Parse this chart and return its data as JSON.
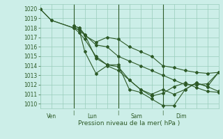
{
  "xlabel": "Pression niveau de la mer( hPa )",
  "ylim": [
    1009.5,
    1020.5
  ],
  "xlim": [
    0,
    96
  ],
  "bg_color": "#cceee8",
  "grid_color": "#99ccbb",
  "line_color": "#2d5a27",
  "markersize": 2.0,
  "linewidth": 0.8,
  "vlines_x": [
    18,
    42,
    66
  ],
  "day_labels": [
    {
      "label": "Ven",
      "x": 6
    },
    {
      "label": "Lun",
      "x": 28
    },
    {
      "label": "Sam",
      "x": 52
    },
    {
      "label": "Dim",
      "x": 76
    }
  ],
  "series": [
    {
      "x": [
        0,
        6,
        18,
        21,
        24,
        30,
        36,
        42,
        48,
        54,
        60,
        66,
        72,
        78,
        84,
        90,
        96
      ],
      "y": [
        1020.0,
        1018.8,
        1018.0,
        1017.8,
        1017.2,
        1016.5,
        1017.0,
        1016.8,
        1016.0,
        1015.5,
        1015.0,
        1014.0,
        1013.8,
        1013.5,
        1013.3,
        1013.2,
        1013.3
      ]
    },
    {
      "x": [
        18,
        21,
        24,
        30,
        36,
        42,
        48,
        54,
        60,
        66,
        72,
        78,
        84,
        90,
        96
      ],
      "y": [
        1018.2,
        1018.0,
        1017.3,
        1016.2,
        1016.0,
        1015.0,
        1014.5,
        1014.0,
        1013.5,
        1013.0,
        1012.5,
        1012.0,
        1012.0,
        1012.1,
        1013.3
      ]
    },
    {
      "x": [
        18,
        21,
        24,
        30,
        36,
        42,
        48,
        54,
        60,
        66,
        72,
        78,
        84,
        90,
        96
      ],
      "y": [
        1018.0,
        1017.8,
        1015.5,
        1013.2,
        1014.0,
        1013.5,
        1012.5,
        1011.5,
        1011.0,
        1011.5,
        1011.0,
        1011.5,
        1012.2,
        1011.8,
        1011.3
      ]
    },
    {
      "x": [
        0,
        6,
        18,
        21,
        24,
        30,
        36,
        42,
        48,
        54,
        60,
        66,
        72,
        78,
        84,
        90,
        96
      ],
      "y": [
        1020.0,
        1018.8,
        1018.0,
        1017.5,
        1016.8,
        1015.0,
        1014.1,
        1013.9,
        1012.5,
        1011.5,
        1010.8,
        1011.1,
        1011.8,
        1012.2,
        1011.7,
        1011.3,
        1011.2
      ]
    },
    {
      "x": [
        18,
        21,
        24,
        30,
        36,
        42,
        48,
        54,
        60,
        66,
        72,
        78,
        84,
        90,
        96
      ],
      "y": [
        1018.2,
        1018.0,
        1017.3,
        1014.8,
        1014.1,
        1014.1,
        1011.5,
        1011.2,
        1010.5,
        1009.8,
        1009.8,
        1011.5,
        1012.2,
        1011.8,
        1013.3
      ]
    }
  ]
}
